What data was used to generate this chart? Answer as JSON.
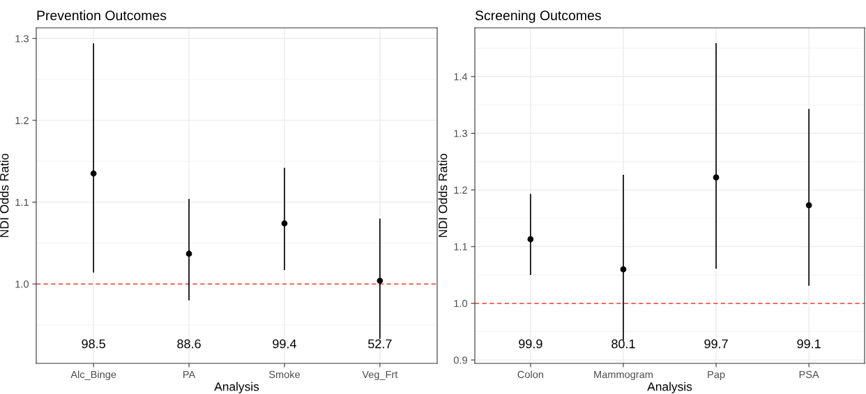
{
  "chart_data": [
    {
      "type": "scatter",
      "title": "Prevention Outcomes",
      "xlabel": "Analysis",
      "ylabel": "NDI Odds Ratio",
      "categories": [
        "Alc_Binge",
        "PA",
        "Smoke",
        "Veg_Frt"
      ],
      "series": [
        {
          "color": "#000000",
          "values": [
            1.135,
            1.037,
            1.074,
            1.004
          ],
          "errors": [
            [
              1.014,
              1.294
            ],
            [
              0.98,
              1.104
            ],
            [
              1.017,
              1.142
            ],
            [
              0.933,
              1.08
            ]
          ]
        }
      ],
      "ylim": [
        0.903,
        1.313
      ],
      "yticks": [
        {
          "value": 1.0,
          "label": "1.0"
        },
        {
          "value": 1.1,
          "label": "1.1"
        },
        {
          "value": 1.2,
          "label": "1.2"
        },
        {
          "value": 1.3,
          "label": "1.3"
        }
      ],
      "grid": true,
      "marker": "circle",
      "ref_lines": [
        {
          "axis": "y",
          "value": 1.0,
          "color": "#e8403a",
          "line_style": "dashed"
        }
      ],
      "annotations": [
        "98.5",
        "88.6",
        "99.4",
        "52.7"
      ]
    },
    {
      "type": "scatter",
      "title": "Screening Outcomes",
      "xlabel": "Analysis",
      "ylabel": "NDI Odds Ratio",
      "categories": [
        "Colon",
        "Mammogram",
        "Pap",
        "PSA"
      ],
      "series": [
        {
          "color": "#000000",
          "values": [
            1.113,
            1.06,
            1.222,
            1.173
          ],
          "errors": [
            [
              1.05,
              1.193
            ],
            [
              0.935,
              1.227
            ],
            [
              1.061,
              1.459
            ],
            [
              1.031,
              1.343
            ]
          ]
        }
      ],
      "ylim": [
        0.894,
        1.486
      ],
      "yticks": [
        {
          "value": 0.9,
          "label": "0.9"
        },
        {
          "value": 1.0,
          "label": "1.0"
        },
        {
          "value": 1.1,
          "label": "1.1"
        },
        {
          "value": 1.2,
          "label": "1.2"
        },
        {
          "value": 1.3,
          "label": "1.3"
        },
        {
          "value": 1.4,
          "label": "1.4"
        }
      ],
      "grid": true,
      "marker": "circle",
      "ref_lines": [
        {
          "axis": "y",
          "value": 1.0,
          "color": "#e8403a",
          "line_style": "dashed"
        }
      ],
      "annotations": [
        "99.9",
        "80.1",
        "99.7",
        "99.1"
      ]
    }
  ]
}
